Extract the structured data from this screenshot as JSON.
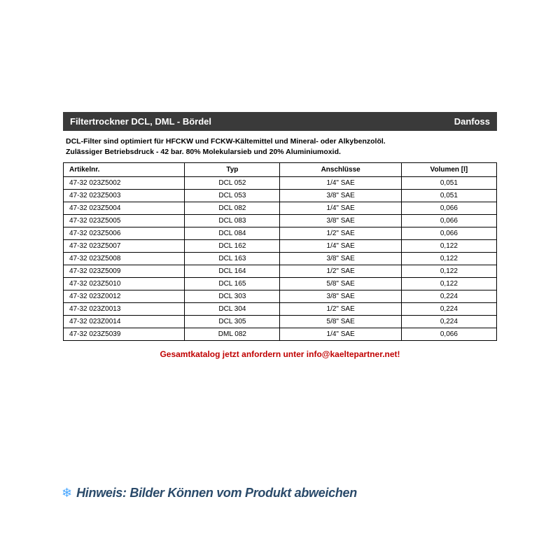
{
  "header": {
    "title": "Filtertrockner DCL, DML - Bördel",
    "brand": "Danfoss",
    "background_color": "#3a3a3a",
    "text_color": "#ffffff"
  },
  "description": {
    "line1": "DCL-Filter sind optimiert für HFCKW und FCKW-Kältemittel und Mineral- oder Alkybenzolöl.",
    "line2": "Zulässiger Betriebsdruck - 42 bar. 80% Molekularsieb und 20% Aluminiumoxid."
  },
  "table": {
    "columns": [
      "Artikelnr.",
      "Typ",
      "Anschlüsse",
      "Volumen [l]"
    ],
    "rows": [
      [
        "47-32 023Z5002",
        "DCL 052",
        "1/4\" SAE",
        "0,051"
      ],
      [
        "47-32 023Z5003",
        "DCL 053",
        "3/8\" SAE",
        "0,051"
      ],
      [
        "47-32 023Z5004",
        "DCL 082",
        "1/4\" SAE",
        "0,066"
      ],
      [
        "47-32 023Z5005",
        "DCL 083",
        "3/8\" SAE",
        "0,066"
      ],
      [
        "47-32 023Z5006",
        "DCL 084",
        "1/2\" SAE",
        "0,066"
      ],
      [
        "47-32 023Z5007",
        "DCL 162",
        "1/4\" SAE",
        "0,122"
      ],
      [
        "47-32 023Z5008",
        "DCL 163",
        "3/8\" SAE",
        "0,122"
      ],
      [
        "47-32 023Z5009",
        "DCL 164",
        "1/2\" SAE",
        "0,122"
      ],
      [
        "47-32 023Z5010",
        "DCL 165",
        "5/8\" SAE",
        "0,122"
      ],
      [
        "47-32 023Z0012",
        "DCL 303",
        "3/8\" SAE",
        "0,224"
      ],
      [
        "47-32 023Z0013",
        "DCL 304",
        "1/2\" SAE",
        "0,224"
      ],
      [
        "47-32 023Z0014",
        "DCL 305",
        "5/8\" SAE",
        "0,224"
      ],
      [
        "47-32 023Z5039",
        "DML 082",
        "1/4\" SAE",
        "0,066"
      ]
    ]
  },
  "catalog_note": "Gesamtkatalog jetzt anfordern unter info@kaeltepartner.net!",
  "catalog_note_color": "#c00000",
  "disclaimer": {
    "text": "Hinweis: Bilder Können vom Produkt abweichen",
    "text_color": "#2a4a6a",
    "icon": "❄"
  }
}
